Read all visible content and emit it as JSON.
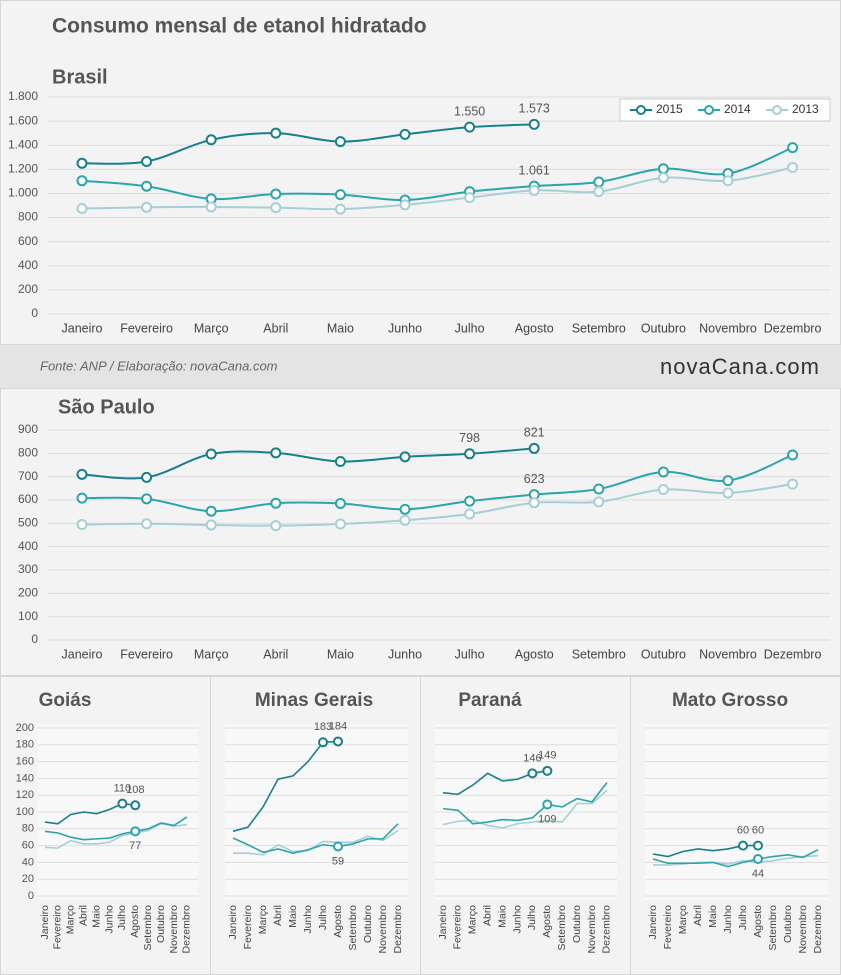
{
  "title": "Consumo mensal de etanol hidratado",
  "source": "Fonte: ANP / Elaboração: novaCana.com",
  "logo": "novaCana.com",
  "chart_data": [
    {
      "type": "line",
      "title": "Brasil",
      "smooth": true,
      "markers": "all",
      "legend": "top-right",
      "categories": [
        "Janeiro",
        "Fevereiro",
        "Março",
        "Abril",
        "Maio",
        "Junho",
        "Julho",
        "Agosto",
        "Setembro",
        "Outubro",
        "Novembro",
        "Dezembro"
      ],
      "ylim": [
        0,
        1800
      ],
      "yticks": [
        0,
        200,
        400,
        600,
        800,
        {
          "value": 1000,
          "label": "1.000"
        },
        {
          "value": 1200,
          "label": "1.200"
        },
        {
          "value": 1400,
          "label": "1.400"
        },
        {
          "value": 1600,
          "label": "1.600"
        },
        {
          "value": 1800,
          "label": "1.800"
        }
      ],
      "series": [
        {
          "name": "2015",
          "color": "#17808a",
          "values": [
            1250,
            1265,
            1445,
            1500,
            1430,
            1490,
            1550,
            1573,
            null,
            null,
            null,
            null
          ],
          "value_labels": [
            null,
            null,
            null,
            null,
            null,
            null,
            "1.550",
            "1.573",
            null,
            null,
            null,
            null
          ]
        },
        {
          "name": "2014",
          "color": "#2aa5aa",
          "values": [
            1105,
            1060,
            955,
            995,
            990,
            945,
            1015,
            1061,
            1095,
            1205,
            1165,
            1380
          ],
          "value_labels": [
            null,
            null,
            null,
            null,
            null,
            null,
            null,
            "1.061",
            null,
            null,
            null,
            null
          ]
        },
        {
          "name": "2013",
          "color": "#a6cfd5",
          "values": [
            875,
            885,
            888,
            882,
            870,
            905,
            965,
            1025,
            1015,
            1130,
            1105,
            1215
          ]
        }
      ]
    },
    {
      "type": "line",
      "title": "São Paulo",
      "smooth": true,
      "markers": "all",
      "categories": [
        "Janeiro",
        "Fevereiro",
        "Março",
        "Abril",
        "Maio",
        "Junho",
        "Julho",
        "Agosto",
        "Setembro",
        "Outubro",
        "Novembro",
        "Dezembro"
      ],
      "ylim": [
        0,
        900
      ],
      "yticks": [
        0,
        100,
        200,
        300,
        400,
        500,
        600,
        700,
        800,
        900
      ],
      "series": [
        {
          "color": "#17808a",
          "values": [
            710,
            697,
            797,
            802,
            765,
            785,
            798,
            821,
            null,
            null,
            null,
            null
          ],
          "value_labels": [
            null,
            null,
            null,
            null,
            null,
            null,
            798,
            821,
            null,
            null,
            null,
            null
          ]
        },
        {
          "color": "#2aa5aa",
          "values": [
            608,
            605,
            552,
            586,
            585,
            560,
            595,
            623,
            647,
            720,
            683,
            793
          ],
          "value_labels": [
            null,
            null,
            null,
            null,
            null,
            null,
            null,
            623,
            null,
            null,
            null,
            null
          ]
        },
        {
          "color": "#a6cfd5",
          "values": [
            495,
            498,
            493,
            490,
            497,
            513,
            540,
            588,
            592,
            645,
            630,
            668
          ]
        }
      ]
    },
    {
      "type": "line",
      "title": "Goiás",
      "smooth": false,
      "markers": "labeled",
      "show_ytick_labels": true,
      "categories": [
        "Janeiro",
        "Fevereiro",
        "Março",
        "Abril",
        "Maio",
        "Junho",
        "Julho",
        "Agosto",
        "Setembro",
        "Outubro",
        "Novembro",
        "Dezembro"
      ],
      "ylim": [
        0,
        200
      ],
      "yticks": [
        0,
        20,
        40,
        60,
        80,
        100,
        120,
        140,
        160,
        180,
        200
      ],
      "series": [
        {
          "color": "#17808a",
          "values": [
            88,
            86,
            97,
            100,
            98,
            103,
            110,
            108,
            null,
            null,
            null,
            null
          ],
          "value_labels": [
            null,
            null,
            null,
            null,
            null,
            null,
            110,
            108,
            null,
            null,
            null,
            null
          ]
        },
        {
          "color": "#2aa5aa",
          "values": [
            77,
            75,
            70,
            67,
            68,
            69,
            74,
            77,
            80,
            87,
            84,
            94
          ],
          "value_labels": [
            null,
            null,
            null,
            null,
            null,
            null,
            null,
            77,
            null,
            null,
            null,
            null
          ]
        },
        {
          "color": "#a6cfd5",
          "values": [
            58,
            57,
            66,
            62,
            62,
            64,
            72,
            75,
            78,
            86,
            83,
            85
          ]
        }
      ]
    },
    {
      "type": "line",
      "title": "Minas Gerais",
      "smooth": false,
      "markers": "labeled",
      "show_ytick_labels": false,
      "categories": [
        "Janeiro",
        "Fevereiro",
        "Março",
        "Abril",
        "Maio",
        "Junho",
        "Julho",
        "Agosto",
        "Setembro",
        "Outubro",
        "Novembro",
        "Dezembro"
      ],
      "ylim": [
        0,
        200
      ],
      "yticks": [
        0,
        20,
        40,
        60,
        80,
        100,
        120,
        140,
        160,
        180,
        200
      ],
      "series": [
        {
          "color": "#17808a",
          "values": [
            77,
            82,
            106,
            139,
            143,
            160,
            183,
            184,
            null,
            null,
            null,
            null
          ],
          "value_labels": [
            null,
            null,
            null,
            null,
            null,
            null,
            183,
            184,
            null,
            null,
            null,
            null
          ]
        },
        {
          "color": "#2aa5aa",
          "values": [
            69,
            61,
            52,
            56,
            51,
            55,
            61,
            59,
            62,
            68,
            68,
            86
          ],
          "value_labels": [
            null,
            null,
            null,
            null,
            null,
            null,
            null,
            59,
            null,
            null,
            null,
            null
          ]
        },
        {
          "color": "#a6cfd5",
          "values": [
            51,
            51,
            49,
            61,
            53,
            54,
            65,
            64,
            64,
            71,
            66,
            78
          ]
        }
      ]
    },
    {
      "type": "line",
      "title": "Paraná",
      "smooth": false,
      "markers": "labeled",
      "show_ytick_labels": false,
      "categories": [
        "Janeiro",
        "Fevereiro",
        "Março",
        "Abril",
        "Maio",
        "Junho",
        "Julho",
        "Agosto",
        "Setembro",
        "Outubro",
        "Novembro",
        "Dezembro"
      ],
      "ylim": [
        0,
        200
      ],
      "yticks": [
        0,
        20,
        40,
        60,
        80,
        100,
        120,
        140,
        160,
        180,
        200
      ],
      "series": [
        {
          "color": "#17808a",
          "values": [
            123,
            121,
            132,
            146,
            137,
            139,
            146,
            149,
            null,
            null,
            null,
            null
          ],
          "value_labels": [
            null,
            null,
            null,
            null,
            null,
            null,
            146,
            149,
            null,
            null,
            null,
            null
          ]
        },
        {
          "color": "#2aa5aa",
          "values": [
            104,
            102,
            86,
            88,
            91,
            90,
            93,
            109,
            106,
            116,
            112,
            135
          ],
          "value_labels": [
            null,
            null,
            null,
            null,
            null,
            null,
            null,
            109,
            null,
            null,
            null,
            null
          ]
        },
        {
          "color": "#a6cfd5",
          "values": [
            85,
            89,
            90,
            84,
            81,
            86,
            88,
            90,
            88,
            110,
            110,
            126
          ]
        }
      ]
    },
    {
      "type": "line",
      "title": "Mato Grosso",
      "smooth": false,
      "markers": "labeled",
      "show_ytick_labels": false,
      "categories": [
        "Janeiro",
        "Fevereiro",
        "Março",
        "Abril",
        "Maio",
        "Junho",
        "Julho",
        "Agosto",
        "Setembro",
        "Outubro",
        "Novembro",
        "Dezembro"
      ],
      "ylim": [
        0,
        200
      ],
      "yticks": [
        0,
        20,
        40,
        60,
        80,
        100,
        120,
        140,
        160,
        180,
        200
      ],
      "series": [
        {
          "color": "#17808a",
          "values": [
            50,
            47,
            53,
            56,
            54,
            56,
            60,
            60,
            null,
            null,
            null,
            null
          ],
          "value_labels": [
            null,
            null,
            null,
            null,
            null,
            null,
            60,
            60,
            null,
            null,
            null,
            null
          ]
        },
        {
          "color": "#2aa5aa",
          "values": [
            44,
            39,
            39,
            39,
            40,
            35,
            40,
            44,
            47,
            49,
            46,
            55
          ],
          "value_labels": [
            null,
            null,
            null,
            null,
            null,
            null,
            null,
            44,
            null,
            null,
            null,
            null
          ]
        },
        {
          "color": "#a6cfd5",
          "values": [
            37,
            37,
            38,
            40,
            40,
            38,
            42,
            40,
            42,
            45,
            47,
            48
          ]
        }
      ]
    }
  ]
}
